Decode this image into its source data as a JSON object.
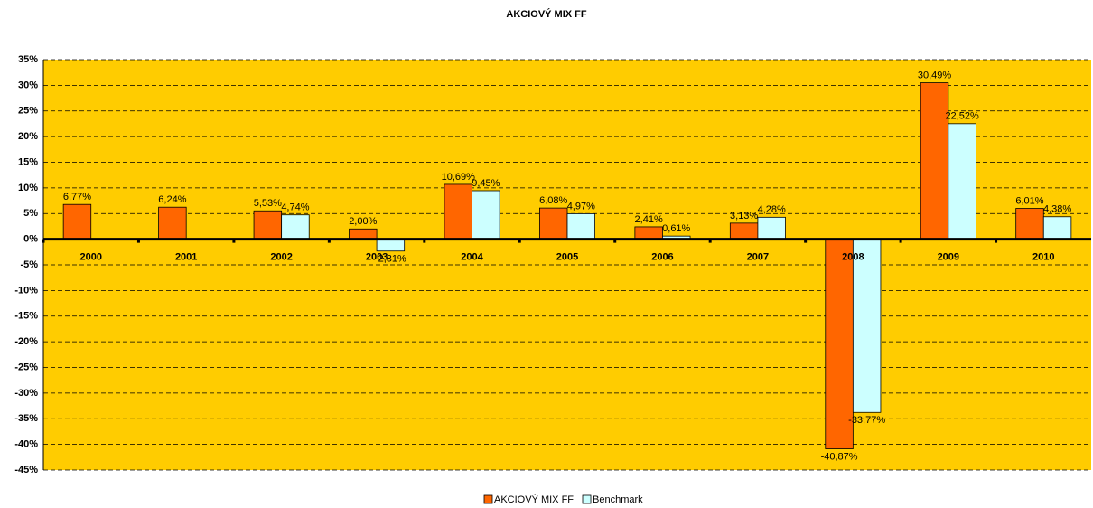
{
  "chart_data": {
    "type": "bar",
    "title": "AKCIOVÝ MIX FF",
    "categories": [
      "2000",
      "2001",
      "2002",
      "2003",
      "2004",
      "2005",
      "2006",
      "2007",
      "2008",
      "2009",
      "2010"
    ],
    "series": [
      {
        "name": "AKCIOVÝ MIX FF",
        "color": "#ff6600",
        "values": [
          6.77,
          6.24,
          5.53,
          2.0,
          10.69,
          6.08,
          2.41,
          3.13,
          -40.87,
          30.49,
          6.01
        ],
        "value_labels": [
          "6,77%",
          "6,24%",
          "5,53%",
          "2,00%",
          "10,69%",
          "6,08%",
          "2,41%",
          "3,13%",
          "-40,87%",
          "30,49%",
          "6,01%"
        ]
      },
      {
        "name": "Benchmark",
        "color": "#ccffff",
        "values": [
          null,
          null,
          4.74,
          -2.31,
          9.45,
          4.97,
          0.61,
          4.28,
          -33.77,
          22.52,
          4.38
        ],
        "value_labels": [
          null,
          null,
          "4,74%",
          "-2,31%",
          "9,45%",
          "4,97%",
          "0,61%",
          "4,28%",
          "-33,77%",
          "22,52%",
          "4,38%"
        ]
      }
    ],
    "ylim": [
      -45,
      35
    ],
    "yticks": [
      {
        "value": 35,
        "label": "35%"
      },
      {
        "value": 30,
        "label": "30%"
      },
      {
        "value": 25,
        "label": "25%"
      },
      {
        "value": 20,
        "label": "20%"
      },
      {
        "value": 15,
        "label": "15%"
      },
      {
        "value": 10,
        "label": "10%"
      },
      {
        "value": 5,
        "label": "5%"
      },
      {
        "value": 0,
        "label": "0%"
      },
      {
        "value": -5,
        "label": "-5%"
      },
      {
        "value": -10,
        "label": "-10%"
      },
      {
        "value": -15,
        "label": "-15%"
      },
      {
        "value": -20,
        "label": "-20%"
      },
      {
        "value": -25,
        "label": "-25%"
      },
      {
        "value": -30,
        "label": "-30%"
      },
      {
        "value": -35,
        "label": "-35%"
      },
      {
        "value": -40,
        "label": "-40%"
      },
      {
        "value": -45,
        "label": "-45%"
      }
    ],
    "grid": true,
    "legend": "bottom",
    "background": "#ffcc00"
  }
}
